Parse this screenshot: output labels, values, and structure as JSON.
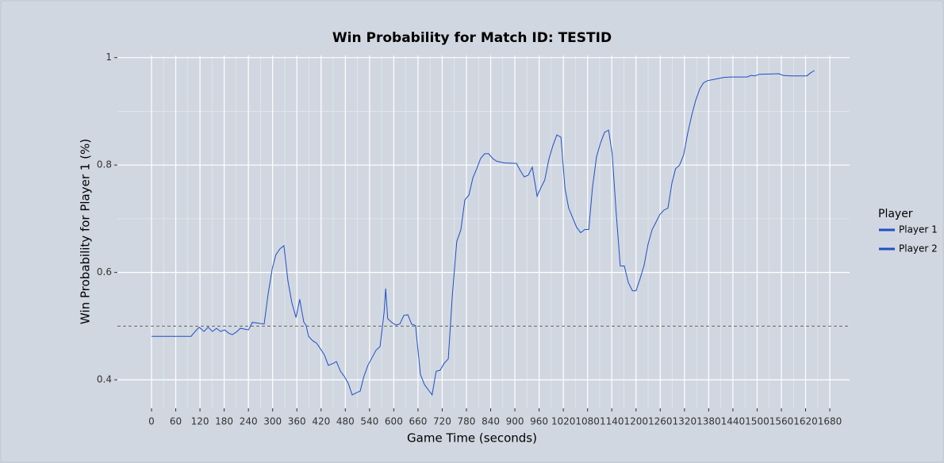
{
  "chart_data": {
    "type": "line",
    "title": "Win Probability for Match ID: TESTID",
    "x_label": "Game Time (seconds)",
    "y_label": "Win Probability for Player 1 (%)",
    "x": [
      0,
      98,
      108,
      118,
      130,
      140,
      151,
      161,
      171,
      181,
      191,
      200,
      210,
      220,
      240,
      250,
      279,
      289,
      299,
      308,
      318,
      328,
      338,
      348,
      358,
      367,
      377,
      383,
      389,
      399,
      409,
      418,
      428,
      438,
      448,
      458,
      468,
      477,
      487,
      497,
      507,
      517,
      526,
      536,
      546,
      556,
      566,
      576,
      580,
      585,
      595,
      605,
      615,
      625,
      635,
      644,
      654,
      658,
      666,
      676,
      686,
      695,
      705,
      715,
      725,
      735,
      745,
      756,
      766,
      776,
      786,
      796,
      806,
      815,
      825,
      835,
      845,
      855,
      874,
      904,
      913,
      923,
      933,
      943,
      955,
      964,
      974,
      984,
      994,
      1004,
      1014,
      1024,
      1033,
      1043,
      1053,
      1063,
      1073,
      1083,
      1092,
      1102,
      1112,
      1122,
      1132,
      1141,
      1151,
      1161,
      1171,
      1181,
      1191,
      1200,
      1210,
      1220,
      1230,
      1240,
      1249,
      1259,
      1269,
      1279,
      1289,
      1298,
      1308,
      1318,
      1328,
      1338,
      1348,
      1358,
      1367,
      1377,
      1397,
      1416,
      1436,
      1475,
      1485,
      1495,
      1505,
      1554,
      1564,
      1583,
      1623,
      1633,
      1642
    ],
    "values": [
      0.481,
      0.481,
      0.49,
      0.498,
      0.49,
      0.498,
      0.49,
      0.496,
      0.49,
      0.493,
      0.487,
      0.484,
      0.489,
      0.496,
      0.493,
      0.507,
      0.504,
      0.561,
      0.607,
      0.633,
      0.644,
      0.65,
      0.584,
      0.542,
      0.516,
      0.55,
      0.508,
      0.501,
      0.481,
      0.473,
      0.468,
      0.458,
      0.447,
      0.427,
      0.43,
      0.434,
      0.416,
      0.407,
      0.394,
      0.372,
      0.376,
      0.379,
      0.406,
      0.427,
      0.441,
      0.455,
      0.462,
      0.526,
      0.57,
      0.514,
      0.507,
      0.502,
      0.504,
      0.52,
      0.521,
      0.504,
      0.501,
      0.47,
      0.41,
      0.391,
      0.381,
      0.372,
      0.416,
      0.418,
      0.431,
      0.439,
      0.557,
      0.658,
      0.679,
      0.735,
      0.744,
      0.776,
      0.794,
      0.812,
      0.821,
      0.821,
      0.812,
      0.807,
      0.804,
      0.803,
      0.79,
      0.778,
      0.781,
      0.796,
      0.742,
      0.757,
      0.772,
      0.81,
      0.836,
      0.856,
      0.852,
      0.757,
      0.72,
      0.702,
      0.684,
      0.674,
      0.68,
      0.68,
      0.757,
      0.815,
      0.841,
      0.861,
      0.865,
      0.821,
      0.71,
      0.612,
      0.612,
      0.581,
      0.566,
      0.566,
      0.588,
      0.613,
      0.653,
      0.68,
      0.693,
      0.708,
      0.716,
      0.72,
      0.767,
      0.793,
      0.8,
      0.819,
      0.859,
      0.893,
      0.921,
      0.942,
      0.953,
      0.957,
      0.96,
      0.963,
      0.964,
      0.964,
      0.967,
      0.966,
      0.969,
      0.97,
      0.967,
      0.966,
      0.966,
      0.972,
      0.976
    ],
    "color": "#1f4fc8",
    "reference_line": 0.5,
    "xlim": [
      -84.5,
      1729
    ],
    "ylim": [
      0.347,
      1.004
    ],
    "xticks": [
      0,
      60,
      120,
      180,
      240,
      300,
      360,
      420,
      480,
      540,
      600,
      660,
      720,
      780,
      840,
      900,
      960,
      1020,
      1080,
      1140,
      1200,
      1260,
      1320,
      1380,
      1440,
      1500,
      1560,
      1620,
      1680
    ],
    "yticks": [
      0.4,
      0.6,
      0.8,
      1
    ],
    "grid": true,
    "legend": {
      "title": "Player",
      "entries": [
        {
          "name": "Player 1",
          "color": "#1f4fc8"
        },
        {
          "name": "Player 2",
          "color": "#1f4fc8"
        }
      ]
    }
  }
}
